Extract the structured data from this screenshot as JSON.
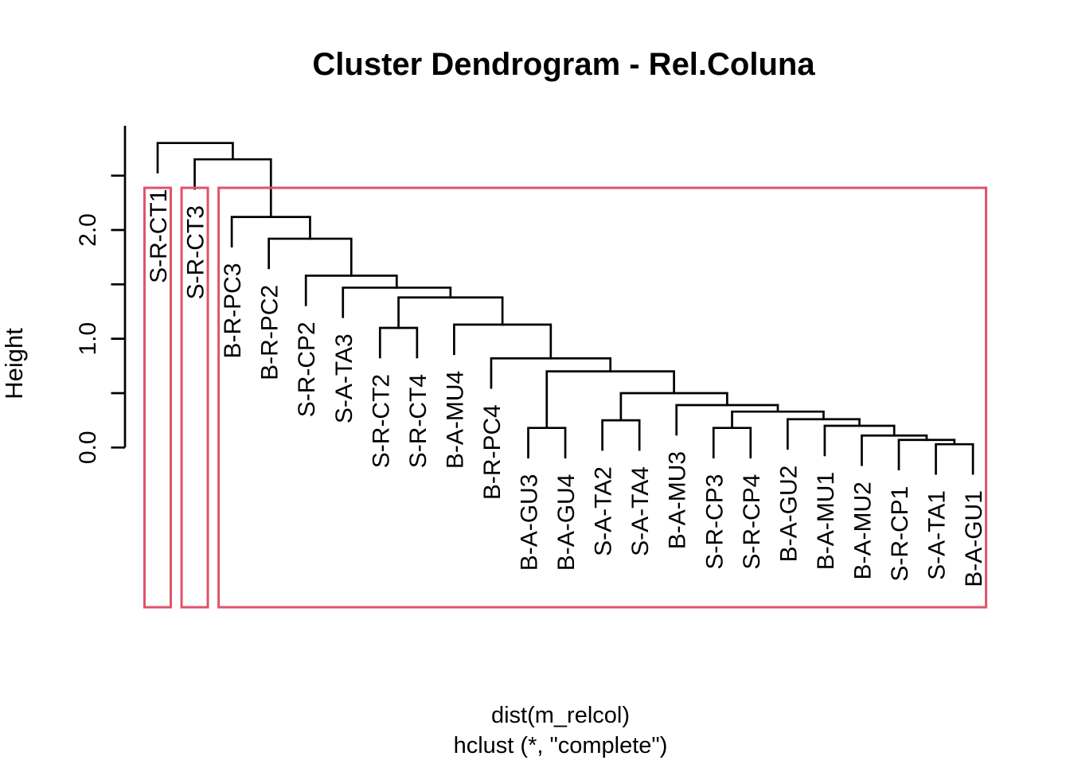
{
  "title": "Cluster Dendrogram - Rel.Coluna",
  "y_axis": {
    "label": "Height",
    "major_ticks": [
      {
        "value": 0.0,
        "label": "0.0"
      },
      {
        "value": 1.0,
        "label": "1.0"
      },
      {
        "value": 2.0,
        "label": "2.0"
      }
    ],
    "minor_ticks": [
      0.5,
      1.5,
      2.5
    ]
  },
  "x_axis": {
    "caption_line1": "dist(m_relcol)",
    "caption_line2": "hclust (*, \"complete\")"
  },
  "colors": {
    "line": "#000000",
    "text": "#000000",
    "cluster_box": "#DF536B",
    "background": "#FFFFFF"
  },
  "chart_data": {
    "type": "dendrogram",
    "title": "Cluster Dendrogram - Rel.Coluna",
    "ylabel": "Height",
    "ylim": [
      0,
      2.8
    ],
    "hang": 0.27,
    "leaves": [
      "S-R-CT1",
      "S-R-CT3",
      "B-R-PC3",
      "B-R-PC2",
      "S-R-CP2",
      "S-A-TA3",
      "S-R-CT2",
      "S-R-CT4",
      "B-A-MU4",
      "B-R-PC4",
      "B-A-GU3",
      "B-A-GU4",
      "S-A-TA2",
      "S-A-TA4",
      "B-A-MU3",
      "S-R-CP3",
      "S-R-CP4",
      "B-A-GU2",
      "B-A-MU1",
      "B-A-MU2",
      "S-R-CP1",
      "S-A-TA1",
      "B-A-GU1"
    ],
    "merges": [
      {
        "a": -22,
        "b": -23,
        "h": 0.03
      },
      {
        "a": -21,
        "b": 1,
        "h": 0.07
      },
      {
        "a": -20,
        "b": 2,
        "h": 0.11
      },
      {
        "a": -11,
        "b": -12,
        "h": 0.18
      },
      {
        "a": -16,
        "b": -17,
        "h": 0.18
      },
      {
        "a": -19,
        "b": 3,
        "h": 0.2
      },
      {
        "a": -13,
        "b": -14,
        "h": 0.25
      },
      {
        "a": -18,
        "b": 6,
        "h": 0.26
      },
      {
        "a": 5,
        "b": 8,
        "h": 0.33
      },
      {
        "a": -15,
        "b": 9,
        "h": 0.39
      },
      {
        "a": 7,
        "b": 10,
        "h": 0.5
      },
      {
        "a": 4,
        "b": 11,
        "h": 0.7
      },
      {
        "a": -10,
        "b": 12,
        "h": 0.82
      },
      {
        "a": -7,
        "b": -8,
        "h": 1.1
      },
      {
        "a": -9,
        "b": 13,
        "h": 1.13
      },
      {
        "a": 14,
        "b": 15,
        "h": 1.38
      },
      {
        "a": -6,
        "b": 16,
        "h": 1.47
      },
      {
        "a": -5,
        "b": 17,
        "h": 1.58
      },
      {
        "a": -4,
        "b": 18,
        "h": 1.92
      },
      {
        "a": -3,
        "b": 19,
        "h": 2.12
      },
      {
        "a": -2,
        "b": 20,
        "h": 2.65
      },
      {
        "a": -1,
        "b": 21,
        "h": 2.8
      }
    ],
    "clusters": [
      {
        "from_leaf": 1,
        "to_leaf": 1
      },
      {
        "from_leaf": 2,
        "to_leaf": 2
      },
      {
        "from_leaf": 3,
        "to_leaf": 23
      }
    ]
  }
}
